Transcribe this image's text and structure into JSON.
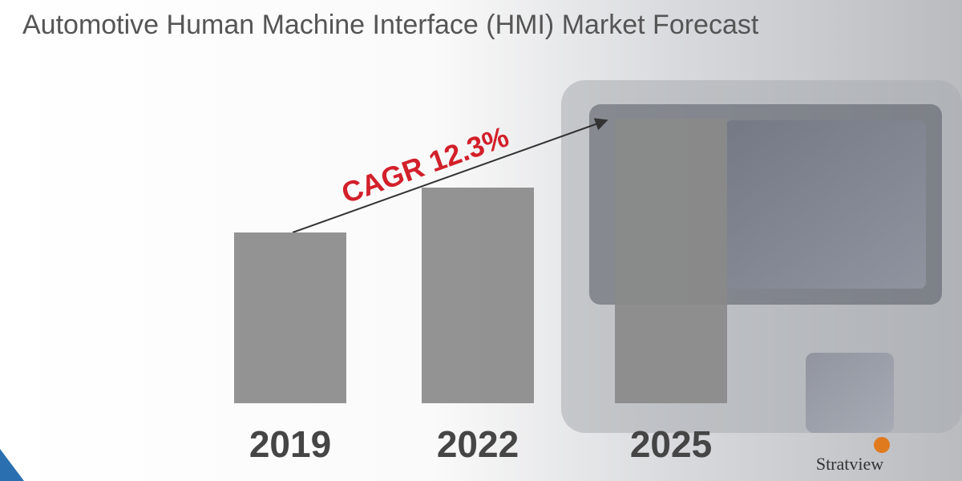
{
  "chart_data": {
    "type": "bar",
    "title": "Automotive Human Machine Interface (HMI) Market Forecast",
    "categories": [
      "2019",
      "2022",
      "2025"
    ],
    "values": [
      213,
      269,
      355
    ],
    "color": "#8a8a8a",
    "ylim": [
      0,
      355
    ],
    "annotation": "CAGR 12.3%",
    "logo": "Stratview"
  }
}
